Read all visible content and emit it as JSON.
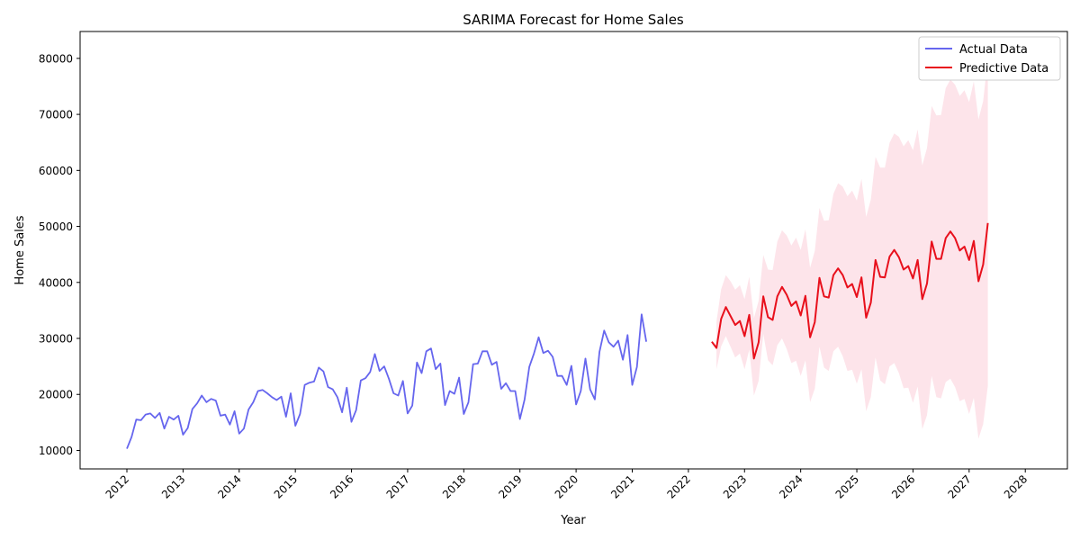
{
  "chart_data": {
    "type": "line",
    "title": "SARIMA Forecast for Home Sales",
    "xlabel": "Year",
    "ylabel": "Home Sales",
    "x_ticks": [
      "2012",
      "2013",
      "2014",
      "2015",
      "2016",
      "2017",
      "2018",
      "2019",
      "2020",
      "2021",
      "2022",
      "2023",
      "2024",
      "2025",
      "2026",
      "2027",
      "2028"
    ],
    "y_ticks": [
      10000,
      20000,
      30000,
      40000,
      50000,
      60000,
      70000,
      80000
    ],
    "xlim": [
      "2011-03",
      "2028-10"
    ],
    "ylim": [
      6700,
      84800
    ],
    "grid": false,
    "legend_position": "top-right",
    "colors": {
      "actual": "#6666ee",
      "forecast": "#e8101c",
      "confidence_band": "#fde4ea"
    },
    "series": [
      {
        "name": "Actual Data",
        "start": "2012-01",
        "frequency": "monthly",
        "values": [
          10300,
          12400,
          15500,
          15400,
          16400,
          16600,
          15800,
          16700,
          13900,
          16000,
          15500,
          16200,
          12800,
          14000,
          17400,
          18400,
          19800,
          18600,
          19200,
          18900,
          16200,
          16400,
          14600,
          17000,
          13000,
          13900,
          17300,
          18600,
          20600,
          20800,
          20200,
          19500,
          19000,
          19600,
          16000,
          20200,
          14400,
          16500,
          21700,
          22100,
          22300,
          24800,
          24100,
          21300,
          20900,
          19500,
          16800,
          21200,
          15100,
          17200,
          22500,
          22900,
          24000,
          27200,
          24200,
          25000,
          22800,
          20200,
          19800,
          22400,
          16600,
          18000,
          25700,
          23800,
          27700,
          28200,
          24500,
          25500,
          18100,
          20600,
          20100,
          23000,
          16500,
          18600,
          25400,
          25500,
          27700,
          27700,
          25300,
          25800,
          21000,
          22000,
          20600,
          20600,
          15600,
          19100,
          24900,
          27300,
          30200,
          27400,
          27800,
          26700,
          23300,
          23300,
          21700,
          25100,
          18200,
          20600,
          26400,
          20900,
          19100,
          27600,
          31400,
          29300,
          28500,
          29600,
          26200,
          30600,
          21700,
          24900,
          34300,
          29400
        ]
      },
      {
        "name": "Predictive Data",
        "start": "2022-06",
        "frequency": "monthly",
        "values": [
          29400,
          28300,
          33500,
          35600,
          34000,
          32400,
          33100,
          30400,
          34200,
          26400,
          29300,
          37500,
          33800,
          33300,
          37500,
          39200,
          37800,
          35800,
          36600,
          34100,
          37600,
          30200,
          32900,
          40800,
          37500,
          37300,
          41300,
          42500,
          41300,
          39100,
          39700,
          37400,
          40900,
          33700,
          36400,
          44000,
          41000,
          40900,
          44600,
          45800,
          44500,
          42300,
          42900,
          40700,
          44000,
          37000,
          39800,
          47300,
          44200,
          44200,
          47900,
          49100,
          47900,
          45700,
          46400,
          44000,
          47400,
          40200,
          43200,
          50600
        ],
        "upper": [
          null,
          33000,
          38800,
          41300,
          40200,
          38700,
          39500,
          37000,
          41000,
          33600,
          36700,
          44900,
          42300,
          42200,
          47300,
          49300,
          48400,
          46600,
          48000,
          45800,
          49500,
          42600,
          45600,
          53300,
          51000,
          51100,
          55800,
          57700,
          57100,
          55400,
          56400,
          54600,
          58500,
          51700,
          54800,
          62400,
          60500,
          60500,
          64900,
          66600,
          66000,
          64300,
          65400,
          63600,
          67300,
          60900,
          64000,
          71500,
          69800,
          69900,
          74700,
          76200,
          75300,
          73300,
          74300,
          72200,
          75900,
          69100,
          72400,
          80000
        ],
        "lower": [
          null,
          24500,
          28600,
          30400,
          28500,
          26600,
          27300,
          24500,
          28000,
          19800,
          22400,
          30800,
          26100,
          25200,
          28800,
          30000,
          28100,
          25600,
          26000,
          23300,
          26100,
          18600,
          21000,
          28500,
          24800,
          24200,
          27700,
          28500,
          26800,
          24200,
          24400,
          21900,
          24500,
          17000,
          19500,
          26600,
          22500,
          21800,
          25000,
          25600,
          23800,
          21100,
          21200,
          18500,
          21400,
          13800,
          16300,
          23300,
          19500,
          19300,
          22200,
          22800,
          21300,
          18800,
          19200,
          16500,
          19400,
          12100,
          14700,
          21500
        ]
      }
    ]
  }
}
